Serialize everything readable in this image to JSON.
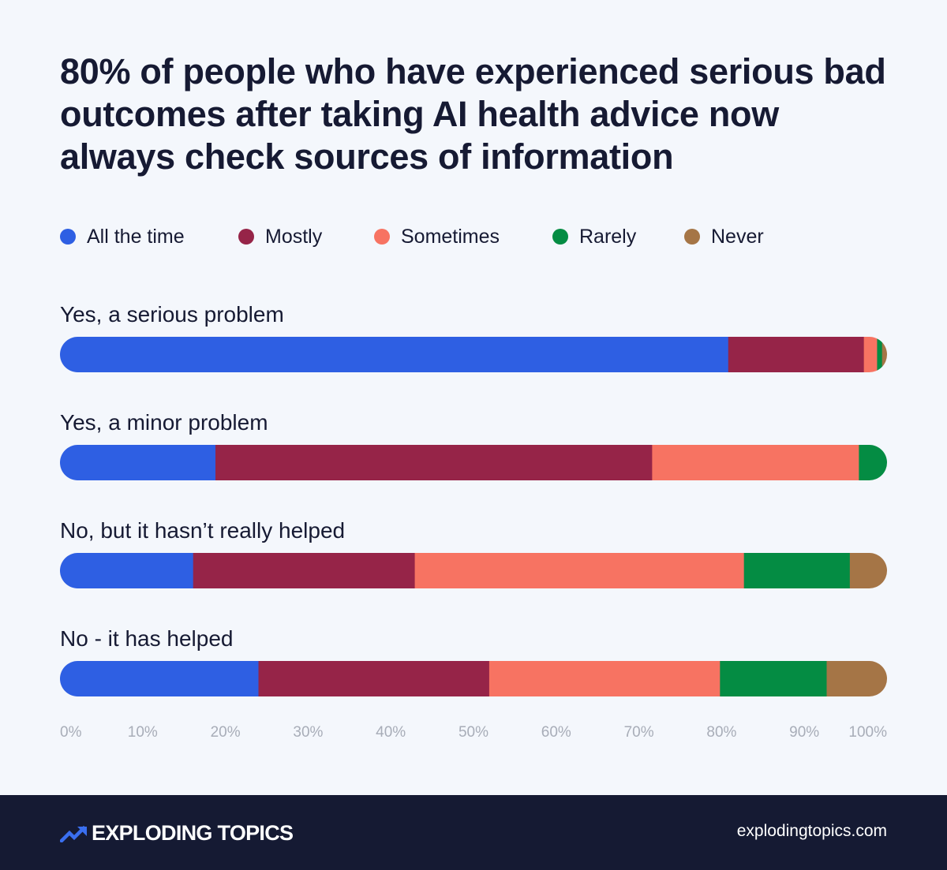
{
  "page": {
    "title": "80% of people who have experienced serious bad outcomes after taking AI health advice now always check sources of information",
    "brand": "EXPLODING TOPICS",
    "brand_mark": "trend-arrow-icon",
    "site": "explodingtopics.com"
  },
  "legend": [
    {
      "label": "All the time",
      "color": "#2e5fe3"
    },
    {
      "label": "Mostly",
      "color": "#962448"
    },
    {
      "label": "Sometimes",
      "color": "#f77362"
    },
    {
      "label": "Rarely",
      "color": "#048c43"
    },
    {
      "label": "Never",
      "color": "#a57546"
    }
  ],
  "chart_data": {
    "type": "bar",
    "orientation": "horizontal",
    "stacked": true,
    "title": "80% of people who have experienced serious bad outcomes after taking AI health advice now always check sources of information",
    "categories": [
      "Yes, a serious problem",
      "Yes, a minor problem",
      "No, but it hasn’t really helped",
      "No - it has helped"
    ],
    "series": [
      {
        "name": "All the time",
        "color": "#2e5fe3",
        "values": [
          80.8,
          18.8,
          16.1,
          24.0
        ]
      },
      {
        "name": "Mostly",
        "color": "#962448",
        "values": [
          16.4,
          52.8,
          26.8,
          27.9
        ]
      },
      {
        "name": "Sometimes",
        "color": "#f77362",
        "values": [
          1.6,
          25.0,
          39.8,
          27.9
        ]
      },
      {
        "name": "Rarely",
        "color": "#048c43",
        "values": [
          0.6,
          3.4,
          12.8,
          12.9
        ]
      },
      {
        "name": "Never",
        "color": "#a57546",
        "values": [
          0.6,
          0.0,
          4.5,
          7.3
        ]
      }
    ],
    "xlim": [
      0,
      100
    ],
    "x_ticks": [
      "0%",
      "10%",
      "20%",
      "30%",
      "40%",
      "50%",
      "60%",
      "70%",
      "80%",
      "90%",
      "100%"
    ],
    "legend_position": "top",
    "grid": false
  }
}
